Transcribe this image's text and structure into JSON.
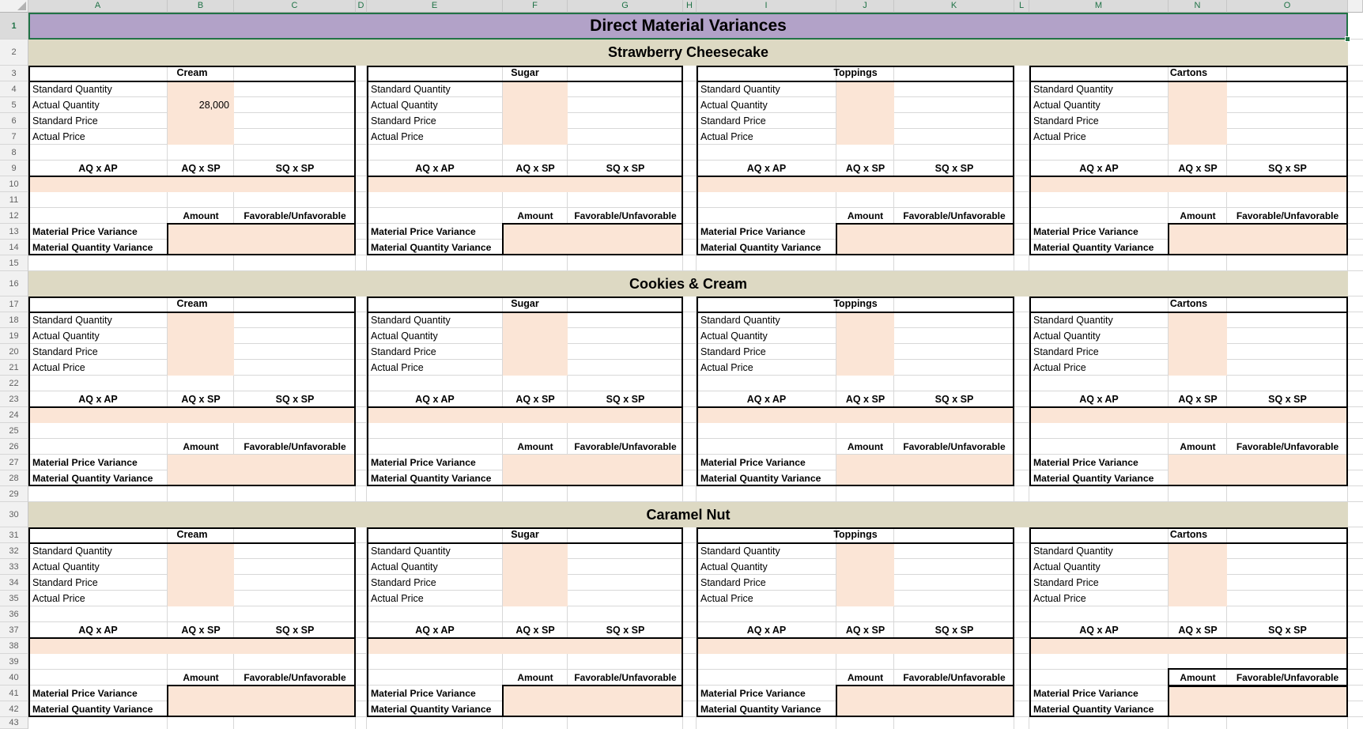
{
  "sheet_title": "Direct Material Variances",
  "column_headers": [
    "A",
    "B",
    "C",
    "D",
    "E",
    "F",
    "G",
    "H",
    "I",
    "J",
    "K",
    "L",
    "M",
    "N",
    "O"
  ],
  "row_numbers": [
    "1",
    "2",
    "3",
    "4",
    "5",
    "6",
    "7",
    "8",
    "9",
    "10",
    "11",
    "12",
    "13",
    "14",
    "15",
    "16",
    "17",
    "18",
    "19",
    "20",
    "21",
    "22",
    "23",
    "24",
    "25",
    "26",
    "27",
    "28",
    "29",
    "30",
    "31",
    "32",
    "33",
    "34",
    "35",
    "36",
    "37",
    "38",
    "39",
    "40",
    "41",
    "42",
    "43"
  ],
  "row_labels": [
    "Standard Quantity",
    "Actual Quantity",
    "Standard Price",
    "Actual Price"
  ],
  "calc_headers": [
    "AQ x AP",
    "AQ x SP",
    "SQ x SP"
  ],
  "variance_headers": [
    "Amount",
    "Favorable/Unfavorable"
  ],
  "variance_labels": [
    "Material Price Variance",
    "Material Quantity Variance"
  ],
  "sections": [
    {
      "name": "Strawberry Cheesecake",
      "materials": [
        {
          "name": "Cream",
          "values": [
            "",
            "28,000",
            "",
            ""
          ]
        },
        {
          "name": "Sugar",
          "values": [
            "",
            "",
            "",
            ""
          ]
        },
        {
          "name": "Toppings",
          "values": [
            "",
            "",
            "",
            ""
          ]
        },
        {
          "name": "Cartons",
          "values": [
            "",
            "",
            "",
            ""
          ]
        }
      ]
    },
    {
      "name": "Cookies & Cream",
      "materials": [
        {
          "name": "Cream",
          "values": [
            "",
            "",
            "",
            ""
          ]
        },
        {
          "name": "Sugar",
          "values": [
            "",
            "",
            "",
            ""
          ]
        },
        {
          "name": "Toppings",
          "values": [
            "",
            "",
            "",
            ""
          ]
        },
        {
          "name": "Cartons",
          "values": [
            "",
            "",
            "",
            ""
          ]
        }
      ]
    },
    {
      "name": "Caramel Nut",
      "materials": [
        {
          "name": "Cream",
          "values": [
            "",
            "",
            "",
            ""
          ]
        },
        {
          "name": "Sugar",
          "values": [
            "",
            "",
            "",
            ""
          ]
        },
        {
          "name": "Toppings",
          "values": [
            "",
            "",
            "",
            ""
          ]
        },
        {
          "name": "Cartons",
          "values": [
            "",
            "",
            "",
            ""
          ]
        }
      ]
    }
  ],
  "colors": {
    "title_fill": "#b2a2c8",
    "section_fill": "#ddd9c3",
    "input_fill": "#fbe5d6",
    "sel_green": "#217346",
    "grid": "#d8d8d8",
    "hdr_sel_bg": "#dbdbdb",
    "hdr_bg": "#f1f1f1",
    "hdr_sel_txt": "#1f7246",
    "hdr_txt": "#606060"
  }
}
